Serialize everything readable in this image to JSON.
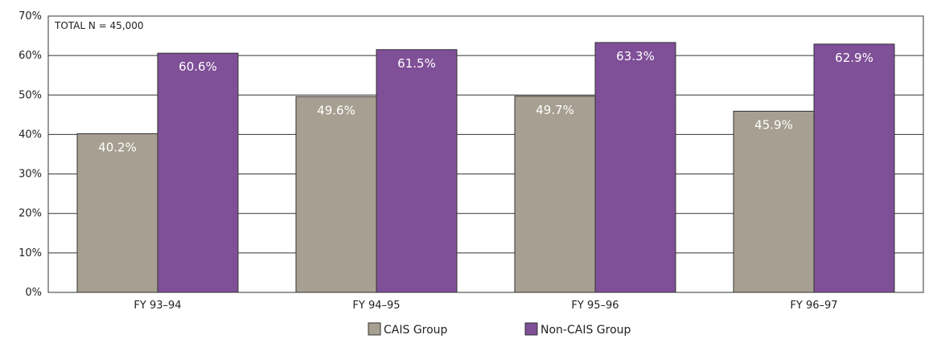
{
  "chart_data": {
    "type": "bar",
    "categories": [
      "FY 93–94",
      "FY 94–95",
      "FY 95–96",
      "FY 96–97"
    ],
    "series": [
      {
        "name": "CAIS Group",
        "values": [
          40.2,
          49.6,
          49.7,
          45.9
        ],
        "labels": [
          "40.2%",
          "49.6%",
          "49.7%",
          "45.9%"
        ],
        "color": "#a79f91"
      },
      {
        "name": "Non-CAIS Group",
        "values": [
          60.6,
          61.5,
          63.3,
          62.9
        ],
        "labels": [
          "60.6%",
          "61.5%",
          "63.3%",
          "62.9%"
        ],
        "color": "#7f4f97"
      }
    ],
    "yticks": [
      0,
      10,
      20,
      30,
      40,
      50,
      60,
      70
    ],
    "ytick_labels": [
      "0%",
      "10%",
      "20%",
      "30%",
      "40%",
      "50%",
      "60%",
      "70%"
    ],
    "ylim": [
      0,
      70
    ],
    "grid": true,
    "legend_position": "bottom-center",
    "annotation": "TOTAL N = 45,000",
    "title": "",
    "xlabel": "",
    "ylabel": ""
  }
}
